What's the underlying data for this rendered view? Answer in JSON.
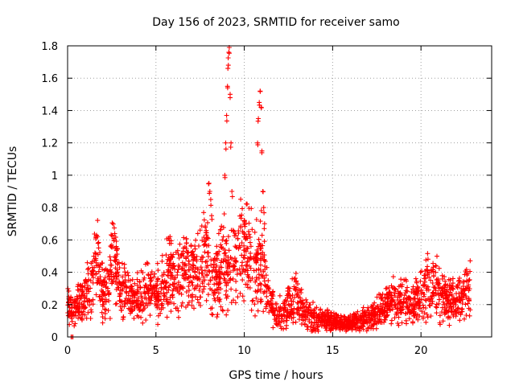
{
  "chart_data": {
    "type": "scatter",
    "title": "Day 156 of 2023, SRMTID for receiver samo",
    "xlabel": "GPS time / hours",
    "ylabel": "SRMTID / TECUs",
    "xlim": [
      0,
      24
    ],
    "ylim": [
      0,
      1.8
    ],
    "xticks": [
      0,
      5,
      10,
      15,
      20
    ],
    "xtick_labels": [
      "0",
      "5",
      "10",
      "15",
      "20"
    ],
    "yticks": [
      0,
      0.2,
      0.4,
      0.6,
      0.8,
      1.0,
      1.2,
      1.4,
      1.6,
      1.8
    ],
    "ytick_labels": [
      "0",
      "0.2",
      "0.4",
      "0.6",
      "0.8",
      "1",
      "1.2",
      "1.4",
      "1.6",
      "1.8"
    ],
    "grid": true,
    "marker": "+",
    "color": "#ff0000",
    "series": [
      {
        "name": "SRMTID",
        "profile": [
          [
            0.0,
            0.2
          ],
          [
            0.3,
            0.18
          ],
          [
            0.6,
            0.2
          ],
          [
            0.9,
            0.25
          ],
          [
            1.2,
            0.3
          ],
          [
            1.4,
            0.35
          ],
          [
            1.6,
            0.55
          ],
          [
            1.8,
            0.4
          ],
          [
            2.0,
            0.25
          ],
          [
            2.3,
            0.3
          ],
          [
            2.5,
            0.5
          ],
          [
            2.7,
            0.45
          ],
          [
            3.0,
            0.25
          ],
          [
            3.3,
            0.3
          ],
          [
            3.6,
            0.2
          ],
          [
            4.0,
            0.25
          ],
          [
            4.5,
            0.3
          ],
          [
            5.0,
            0.25
          ],
          [
            5.5,
            0.35
          ],
          [
            6.0,
            0.4
          ],
          [
            6.5,
            0.35
          ],
          [
            7.0,
            0.4
          ],
          [
            7.5,
            0.45
          ],
          [
            7.9,
            0.5
          ],
          [
            8.2,
            0.3
          ],
          [
            8.5,
            0.4
          ],
          [
            8.8,
            0.5
          ],
          [
            9.1,
            0.4
          ],
          [
            9.5,
            0.45
          ],
          [
            9.8,
            0.55
          ],
          [
            10.2,
            0.5
          ],
          [
            10.6,
            0.45
          ],
          [
            11.0,
            0.45
          ],
          [
            11.4,
            0.25
          ],
          [
            11.8,
            0.15
          ],
          [
            12.2,
            0.15
          ],
          [
            12.6,
            0.2
          ],
          [
            13.0,
            0.25
          ],
          [
            13.4,
            0.15
          ],
          [
            14.0,
            0.12
          ],
          [
            14.5,
            0.1
          ],
          [
            15.0,
            0.1
          ],
          [
            15.5,
            0.08
          ],
          [
            16.0,
            0.08
          ],
          [
            16.5,
            0.1
          ],
          [
            17.0,
            0.12
          ],
          [
            17.5,
            0.15
          ],
          [
            18.0,
            0.2
          ],
          [
            18.5,
            0.22
          ],
          [
            19.0,
            0.22
          ],
          [
            19.5,
            0.2
          ],
          [
            20.0,
            0.25
          ],
          [
            20.4,
            0.35
          ],
          [
            20.8,
            0.3
          ],
          [
            21.2,
            0.28
          ],
          [
            21.6,
            0.22
          ],
          [
            22.0,
            0.22
          ],
          [
            22.4,
            0.25
          ],
          [
            22.8,
            0.3
          ]
        ],
        "spikes": [
          [
            8.0,
            0.95
          ],
          [
            8.05,
            0.9
          ],
          [
            8.1,
            0.85
          ],
          [
            8.15,
            0.75
          ],
          [
            8.9,
            1.0
          ],
          [
            8.95,
            1.2
          ],
          [
            9.0,
            1.37
          ],
          [
            9.05,
            1.55
          ],
          [
            9.1,
            1.68
          ],
          [
            9.12,
            1.76
          ],
          [
            9.15,
            1.79
          ],
          [
            9.2,
            1.5
          ],
          [
            9.25,
            1.2
          ],
          [
            9.3,
            0.9
          ],
          [
            10.0,
            0.72
          ],
          [
            10.05,
            0.7
          ],
          [
            10.75,
            1.2
          ],
          [
            10.8,
            1.35
          ],
          [
            10.85,
            1.45
          ],
          [
            10.9,
            1.52
          ],
          [
            10.95,
            1.42
          ],
          [
            11.0,
            1.15
          ],
          [
            11.05,
            0.9
          ],
          [
            11.1,
            0.8
          ],
          [
            11.15,
            0.7
          ],
          [
            0.2,
            0.0
          ],
          [
            0.3,
            0.0
          ]
        ],
        "n_points": 2400
      }
    ]
  }
}
